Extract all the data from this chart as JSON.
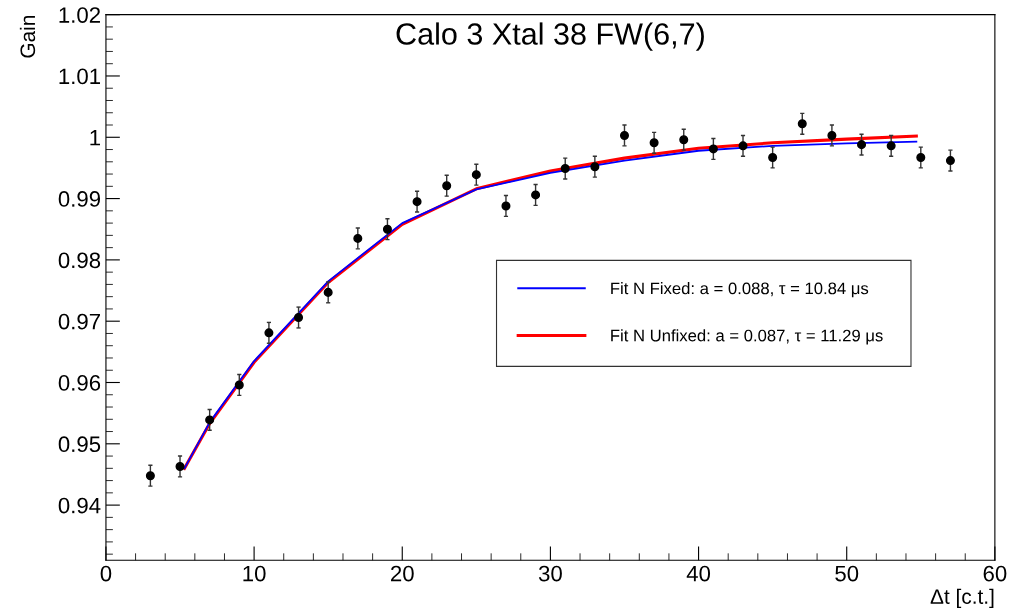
{
  "chart_data": {
    "type": "scatter",
    "title": "Calo 3 Xtal 38 FW(6,7)",
    "xlabel": "Δt [c.t.]",
    "ylabel": "Gain",
    "xlim": [
      0,
      60
    ],
    "xticks": [
      0,
      10,
      20,
      30,
      40,
      50,
      60
    ],
    "ylim": [
      0.931,
      1.02
    ],
    "yticks": [
      0.94,
      0.95,
      0.96,
      0.97,
      0.98,
      0.99,
      {
        "value": 1,
        "label": "1"
      },
      1.01,
      1.02
    ],
    "grid": false,
    "legend": "right",
    "marker": "circle",
    "series": [
      {
        "color": "#000000",
        "x": [
          3,
          5,
          7,
          9,
          11,
          13,
          15,
          17,
          19,
          21,
          23,
          25,
          27,
          29,
          31,
          33,
          35,
          37,
          39,
          41,
          43,
          45,
          47,
          49,
          51,
          53,
          55,
          57
        ],
        "values": [
          0.9448,
          0.9463,
          0.9539,
          0.9596,
          0.9681,
          0.9706,
          0.9747,
          0.9835,
          0.985,
          0.9895,
          0.9921,
          0.9939,
          0.9888,
          0.9906,
          0.9949,
          0.9952,
          1.0003,
          0.9991,
          0.9996,
          0.9981,
          0.9986,
          0.9967,
          1.0022,
          1.0003,
          0.9988,
          0.9986,
          0.9967,
          0.9962
        ],
        "errors": [
          0.0017,
          0.0017,
          0.0017,
          0.0017,
          0.0017,
          0.0017,
          0.0017,
          0.0017,
          0.0017,
          0.0017,
          0.0017,
          0.0017,
          0.0017,
          0.0017,
          0.0017,
          0.0017,
          0.0017,
          0.0017,
          0.0017,
          0.0017,
          0.0017,
          0.0017,
          0.0017,
          0.0017,
          0.0017,
          0.0017,
          0.0017,
          0.0017
        ]
      },
      {
        "type": "line",
        "marker": "none",
        "name": "Fit N Fixed: a = 0.088, τ = 10.84 μs",
        "color": "#0000ff",
        "x": [
          5.3,
          7,
          10,
          15,
          20,
          25,
          30,
          35,
          40,
          45,
          50,
          54.7
        ],
        "values": [
          0.946,
          0.9535,
          0.9635,
          0.9765,
          0.986,
          0.9915,
          0.9942,
          0.9962,
          0.9978,
          0.9986,
          0.999,
          0.9993
        ]
      },
      {
        "type": "line",
        "marker": "none",
        "name": "Fit N Unfixed: a = 0.087, τ = 11.29 μs",
        "color": "#ff0000",
        "x": [
          5.3,
          7,
          10,
          15,
          20,
          25,
          30,
          35,
          40,
          45,
          50,
          54.7
        ],
        "values": [
          0.946,
          0.9533,
          0.9633,
          0.9763,
          0.9858,
          0.9916,
          0.9945,
          0.9966,
          0.9982,
          0.9991,
          0.9997,
          1.0002
        ]
      }
    ]
  }
}
